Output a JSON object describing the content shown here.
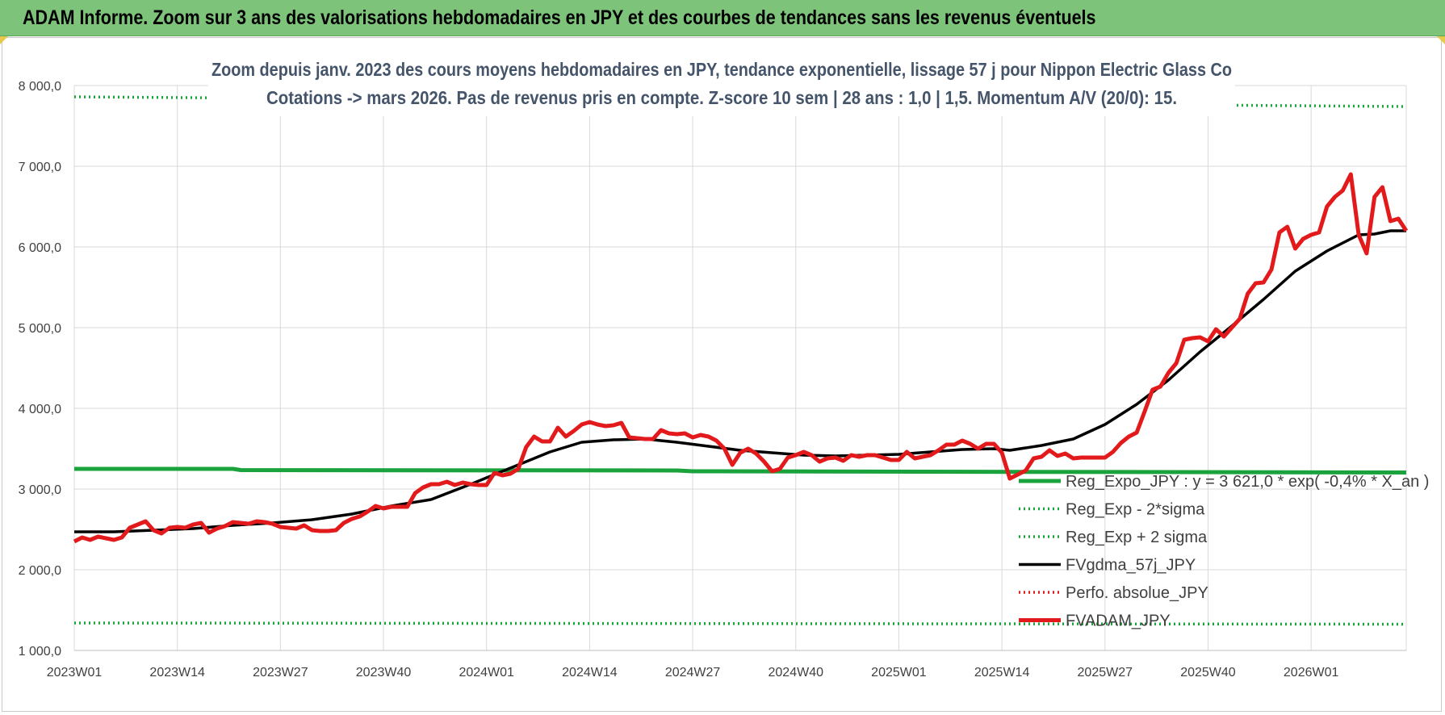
{
  "banner": {
    "title": "ADAM Informe. Zoom sur 3 ans des valorisations hebdomadaires en JPY et des courbes de tendances sans les revenus éventuels"
  },
  "colors": {
    "banner_bg": "#7dc47a",
    "reg_expo": "#1aa33c",
    "sigma": "#1aa33c",
    "fvgdma": "#000000",
    "perfo": "#e31a1c",
    "fvadam": "#e31a1c",
    "subtitle": "#44546a"
  },
  "chart_data": {
    "type": "line",
    "title_line1": "Zoom depuis janv. 2023 des cours moyens hebdomadaires en JPY, tendance exponentielle, lissage 57 j pour Nippon Electric Glass Co",
    "title_line2": "Cotations -> mars 2026. Pas de revenus pris en compte. Z-score 10 sem | 28 ans : 1,0 | 1,5. Momentum A/V (20/0): 15.",
    "ylim": [
      1000,
      8000
    ],
    "yticks": [
      "1 000,0",
      "2 000,0",
      "3 000,0",
      "4 000,0",
      "5 000,0",
      "6 000,0",
      "7 000,0",
      "8 000,0"
    ],
    "ytick_values": [
      1000,
      2000,
      3000,
      4000,
      5000,
      6000,
      7000,
      8000
    ],
    "xticks": [
      "2023W01",
      "2023W14",
      "2023W27",
      "2023W40",
      "2024W01",
      "2024W14",
      "2024W27",
      "2024W40",
      "2025W01",
      "2025W14",
      "2025W27",
      "2025W40",
      "2026W01"
    ],
    "xtick_weeks": [
      0,
      13,
      26,
      39,
      52,
      65,
      78,
      91,
      104,
      117,
      130,
      143,
      156
    ],
    "week_count": 168,
    "grid": true,
    "legend_position": "bottom-right",
    "series": [
      {
        "name": "Reg_Expo_JPY : y = 3 621,0 * exp( -0,4% *  X_an )",
        "style": "solid-thick",
        "color_key": "reg_expo",
        "points": [
          [
            0,
            3250
          ],
          [
            20,
            3250
          ],
          [
            21,
            3235
          ],
          [
            76,
            3230
          ],
          [
            78,
            3220
          ],
          [
            168,
            3205
          ]
        ]
      },
      {
        "name": "Reg_Exp - 2*sigma",
        "style": "dotted",
        "color_key": "sigma",
        "points": [
          [
            0,
            1340
          ],
          [
            168,
            1325
          ]
        ]
      },
      {
        "name": "Reg_Exp + 2 sigma",
        "style": "dotted",
        "color_key": "sigma",
        "points": [
          [
            0,
            7860
          ],
          [
            168,
            7740
          ]
        ]
      },
      {
        "name": "FVgdma_57j_JPY",
        "style": "solid",
        "color_key": "fvgdma",
        "points": [
          [
            0,
            2470
          ],
          [
            5,
            2470
          ],
          [
            10,
            2490
          ],
          [
            15,
            2510
          ],
          [
            20,
            2550
          ],
          [
            25,
            2580
          ],
          [
            30,
            2620
          ],
          [
            35,
            2690
          ],
          [
            40,
            2790
          ],
          [
            45,
            2870
          ],
          [
            50,
            3060
          ],
          [
            55,
            3260
          ],
          [
            60,
            3460
          ],
          [
            64,
            3580
          ],
          [
            68,
            3610
          ],
          [
            72,
            3620
          ],
          [
            76,
            3580
          ],
          [
            80,
            3530
          ],
          [
            84,
            3480
          ],
          [
            88,
            3450
          ],
          [
            92,
            3420
          ],
          [
            96,
            3410
          ],
          [
            100,
            3420
          ],
          [
            104,
            3430
          ],
          [
            108,
            3460
          ],
          [
            112,
            3490
          ],
          [
            116,
            3500
          ],
          [
            118,
            3480
          ],
          [
            122,
            3540
          ],
          [
            126,
            3620
          ],
          [
            130,
            3800
          ],
          [
            134,
            4050
          ],
          [
            138,
            4350
          ],
          [
            142,
            4700
          ],
          [
            146,
            5020
          ],
          [
            150,
            5350
          ],
          [
            154,
            5700
          ],
          [
            158,
            5950
          ],
          [
            162,
            6150
          ],
          [
            164,
            6160
          ],
          [
            166,
            6200
          ],
          [
            168,
            6200
          ]
        ]
      },
      {
        "name": "Perfo. absolue_JPY",
        "style": "dotted",
        "color_key": "perfo",
        "points": []
      },
      {
        "name": "FVADAM_JPY",
        "style": "solid-thick",
        "color_key": "fvadam",
        "points": [
          [
            0,
            2350
          ],
          [
            1,
            2400
          ],
          [
            2,
            2370
          ],
          [
            3,
            2410
          ],
          [
            4,
            2390
          ],
          [
            5,
            2370
          ],
          [
            6,
            2400
          ],
          [
            7,
            2520
          ],
          [
            8,
            2560
          ],
          [
            9,
            2600
          ],
          [
            10,
            2490
          ],
          [
            11,
            2450
          ],
          [
            12,
            2520
          ],
          [
            13,
            2530
          ],
          [
            14,
            2520
          ],
          [
            15,
            2560
          ],
          [
            16,
            2580
          ],
          [
            17,
            2460
          ],
          [
            18,
            2510
          ],
          [
            19,
            2540
          ],
          [
            20,
            2590
          ],
          [
            21,
            2580
          ],
          [
            22,
            2570
          ],
          [
            23,
            2600
          ],
          [
            24,
            2590
          ],
          [
            25,
            2570
          ],
          [
            26,
            2530
          ],
          [
            27,
            2520
          ],
          [
            28,
            2510
          ],
          [
            29,
            2550
          ],
          [
            30,
            2490
          ],
          [
            31,
            2480
          ],
          [
            32,
            2480
          ],
          [
            33,
            2490
          ],
          [
            34,
            2580
          ],
          [
            35,
            2630
          ],
          [
            36,
            2660
          ],
          [
            37,
            2720
          ],
          [
            38,
            2790
          ],
          [
            39,
            2760
          ],
          [
            40,
            2780
          ],
          [
            41,
            2780
          ],
          [
            42,
            2780
          ],
          [
            43,
            2950
          ],
          [
            44,
            3020
          ],
          [
            45,
            3060
          ],
          [
            46,
            3060
          ],
          [
            47,
            3090
          ],
          [
            48,
            3050
          ],
          [
            49,
            3080
          ],
          [
            50,
            3060
          ],
          [
            51,
            3050
          ],
          [
            52,
            3050
          ],
          [
            53,
            3200
          ],
          [
            54,
            3170
          ],
          [
            55,
            3190
          ],
          [
            56,
            3250
          ],
          [
            57,
            3520
          ],
          [
            58,
            3650
          ],
          [
            59,
            3590
          ],
          [
            60,
            3590
          ],
          [
            61,
            3760
          ],
          [
            62,
            3650
          ],
          [
            63,
            3720
          ],
          [
            64,
            3800
          ],
          [
            65,
            3830
          ],
          [
            66,
            3800
          ],
          [
            67,
            3780
          ],
          [
            68,
            3790
          ],
          [
            69,
            3820
          ],
          [
            70,
            3640
          ],
          [
            71,
            3630
          ],
          [
            72,
            3620
          ],
          [
            73,
            3620
          ],
          [
            74,
            3730
          ],
          [
            75,
            3690
          ],
          [
            76,
            3680
          ],
          [
            77,
            3690
          ],
          [
            78,
            3640
          ],
          [
            79,
            3670
          ],
          [
            80,
            3650
          ],
          [
            81,
            3600
          ],
          [
            82,
            3500
          ],
          [
            83,
            3300
          ],
          [
            84,
            3450
          ],
          [
            85,
            3500
          ],
          [
            86,
            3440
          ],
          [
            87,
            3340
          ],
          [
            88,
            3220
          ],
          [
            89,
            3250
          ],
          [
            90,
            3390
          ],
          [
            91,
            3420
          ],
          [
            92,
            3460
          ],
          [
            93,
            3420
          ],
          [
            94,
            3340
          ],
          [
            95,
            3380
          ],
          [
            96,
            3390
          ],
          [
            97,
            3350
          ],
          [
            98,
            3420
          ],
          [
            99,
            3400
          ],
          [
            100,
            3420
          ],
          [
            101,
            3420
          ],
          [
            102,
            3390
          ],
          [
            103,
            3360
          ],
          [
            104,
            3360
          ],
          [
            105,
            3460
          ],
          [
            106,
            3380
          ],
          [
            107,
            3400
          ],
          [
            108,
            3420
          ],
          [
            109,
            3480
          ],
          [
            110,
            3550
          ],
          [
            111,
            3550
          ],
          [
            112,
            3600
          ],
          [
            113,
            3560
          ],
          [
            114,
            3500
          ],
          [
            115,
            3560
          ],
          [
            116,
            3560
          ],
          [
            117,
            3450
          ],
          [
            118,
            3130
          ],
          [
            119,
            3180
          ],
          [
            120,
            3230
          ],
          [
            121,
            3380
          ],
          [
            122,
            3400
          ],
          [
            123,
            3480
          ],
          [
            124,
            3410
          ],
          [
            125,
            3440
          ],
          [
            126,
            3380
          ],
          [
            127,
            3390
          ],
          [
            128,
            3390
          ],
          [
            129,
            3390
          ],
          [
            130,
            3390
          ],
          [
            131,
            3460
          ],
          [
            132,
            3570
          ],
          [
            133,
            3650
          ],
          [
            134,
            3700
          ],
          [
            135,
            3960
          ],
          [
            136,
            4230
          ],
          [
            137,
            4270
          ],
          [
            138,
            4440
          ],
          [
            139,
            4560
          ],
          [
            140,
            4850
          ],
          [
            141,
            4870
          ],
          [
            142,
            4880
          ],
          [
            143,
            4830
          ],
          [
            144,
            4980
          ],
          [
            145,
            4890
          ],
          [
            146,
            5000
          ],
          [
            147,
            5110
          ],
          [
            148,
            5420
          ],
          [
            149,
            5550
          ],
          [
            150,
            5560
          ],
          [
            151,
            5720
          ],
          [
            152,
            6180
          ],
          [
            153,
            6250
          ],
          [
            154,
            5980
          ],
          [
            155,
            6100
          ],
          [
            156,
            6150
          ],
          [
            157,
            6180
          ],
          [
            158,
            6500
          ],
          [
            159,
            6620
          ],
          [
            160,
            6700
          ],
          [
            161,
            6900
          ],
          [
            162,
            6150
          ],
          [
            163,
            5920
          ],
          [
            164,
            6620
          ],
          [
            165,
            6740
          ],
          [
            166,
            6320
          ],
          [
            167,
            6350
          ],
          [
            168,
            6200
          ]
        ]
      }
    ]
  }
}
